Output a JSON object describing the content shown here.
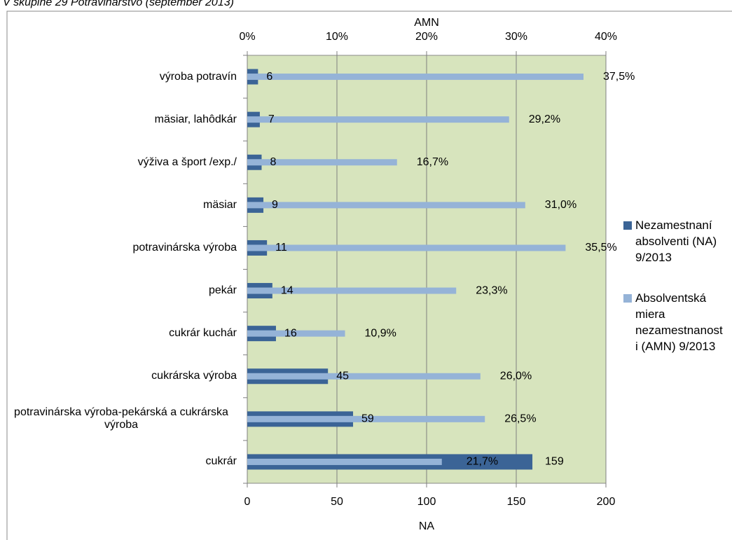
{
  "chart_data": {
    "type": "bar",
    "orientation": "horizontal",
    "title": "V skupine 29 Potravinárstvo (september 2013)",
    "categories": [
      "výroba potravín",
      "mäsiar, lahôdkár",
      "výživa a šport  /exp./",
      "mäsiar",
      "potravinárska výroba",
      "pekár",
      "cukrár kuchár",
      "cukrárska výroba",
      "potravinárska výroba-pekárská a cukrárska výroba",
      "cukrár"
    ],
    "series": [
      {
        "name": "Nezamestnaní absolventi (NA) 9/2013",
        "color": "#3b6496",
        "values": [
          6,
          7,
          8,
          9,
          11,
          14,
          16,
          45,
          59,
          159
        ]
      },
      {
        "name": "Absolventská miera nezamestnanosti (AMN) 9/2013",
        "color": "#95b3d7",
        "axis": "x2",
        "values": [
          37.5,
          29.2,
          16.7,
          31.0,
          35.5,
          23.3,
          10.9,
          26.0,
          26.5,
          21.7
        ],
        "value_labels": [
          "37,5%",
          "29,2%",
          "16,7%",
          "31,0%",
          "35,5%",
          "23,3%",
          "10,9%",
          "26,0%",
          "26,5%",
          "21,7%"
        ]
      }
    ],
    "xlabel": "NA",
    "xlim": [
      0,
      200
    ],
    "xticks": [
      0,
      50,
      100,
      150,
      200
    ],
    "x2label": "AMN",
    "x2lim": [
      0,
      40
    ],
    "x2ticks": [
      {
        "value": 0,
        "label": "0%"
      },
      {
        "value": 10,
        "label": "10%"
      },
      {
        "value": 20,
        "label": "20%"
      },
      {
        "value": 30,
        "label": "30%"
      },
      {
        "value": 40,
        "label": "40%"
      }
    ],
    "grid": true,
    "legend": "right"
  }
}
